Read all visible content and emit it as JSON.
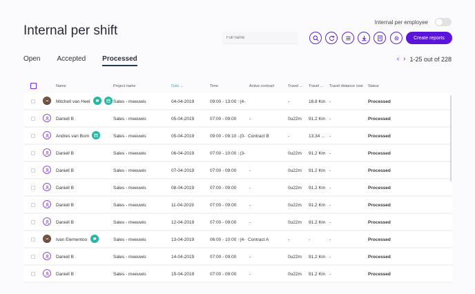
{
  "header": {
    "title": "Internal per shift",
    "toggle_label": "Internal per employee",
    "search_placeholder": "Full name",
    "create_button": "Create reports",
    "icons": [
      "search-icon",
      "refresh-icon",
      "list-icon",
      "download-icon",
      "document-icon",
      "gear-icon"
    ]
  },
  "tabs": [
    {
      "label": "Open",
      "active": false
    },
    {
      "label": "Accepted",
      "active": false
    },
    {
      "label": "Processed",
      "active": true
    }
  ],
  "pager": {
    "text": "1-25 out of 228",
    "prev": "‹",
    "next": "›"
  },
  "columns": {
    "name": "Name",
    "project": "Project name",
    "date": "Date",
    "date_sort": "⌄",
    "time": "Time",
    "contract": "Active contract",
    "travel1": "Travel ...",
    "travel2": "Travel ...",
    "travel_cost": "Travel distance cost",
    "status": "Status"
  },
  "rows": [
    {
      "name": "Mitchell van Heel",
      "project": "Sales - meeuwis",
      "date": "04-04-2019",
      "time": "09:00 - 13:00",
      "arrow": "↑",
      "arrow_dir": "up",
      "time_suffix": "(4-",
      "contract": "",
      "t1": "-",
      "t2": "18.8 Km",
      "cost": "-",
      "status": "Processed",
      "avatar": "photo",
      "badges": [
        "chat-icon",
        "calendar-icon"
      ]
    },
    {
      "name": "Daniell B",
      "project": "Sales - meeuwis",
      "date": "05-04-2019",
      "time": "07:00 - 09:00",
      "arrow": "",
      "arrow_dir": "",
      "time_suffix": "",
      "contract": "-",
      "t1": "0u22m",
      "t2": "91.2 Km",
      "cost": "-",
      "status": "Processed",
      "avatar": "default",
      "badges": []
    },
    {
      "name": "Andres van Born",
      "project": "Sales - meeuwis",
      "date": "05-04-2019",
      "time": "09:00 - 09:10",
      "arrow": "↓",
      "arrow_dir": "down",
      "time_suffix": "(0-",
      "contract": "Contract B",
      "t1": "-",
      "t2": "13.34 ...",
      "cost": "-",
      "status": "Processed",
      "avatar": "default",
      "badges": [
        "calendar-icon"
      ]
    },
    {
      "name": "Daniell B",
      "project": "Sales - meeuwis",
      "date": "06-04-2019",
      "time": "07:00 - 10:00",
      "arrow": "↓",
      "arrow_dir": "down",
      "time_suffix": "(3-",
      "contract": "",
      "t1": "0u22m",
      "t2": "91.2 Km",
      "cost": "-",
      "status": "Processed",
      "avatar": "default",
      "badges": []
    },
    {
      "name": "Daniell B",
      "project": "Sales - meeuwis",
      "date": "07-04-2019",
      "time": "07:00 - 09:00",
      "arrow": "",
      "arrow_dir": "",
      "time_suffix": "",
      "contract": "-",
      "t1": "0u22m",
      "t2": "91.2 Km",
      "cost": "-",
      "status": "Processed",
      "avatar": "default",
      "badges": []
    },
    {
      "name": "Daniell B",
      "project": "Sales - meeuwis",
      "date": "08-04-2019",
      "time": "07:00 - 09:00",
      "arrow": "",
      "arrow_dir": "",
      "time_suffix": "",
      "contract": "-",
      "t1": "0u22m",
      "t2": "91.2 Km",
      "cost": "-",
      "status": "Processed",
      "avatar": "default",
      "badges": []
    },
    {
      "name": "Daniell B",
      "project": "Sales - meeuwis",
      "date": "11-04-2019",
      "time": "07:00 - 09:00",
      "arrow": "",
      "arrow_dir": "",
      "time_suffix": "",
      "contract": "-",
      "t1": "0u22m",
      "t2": "91.2 Km",
      "cost": "-",
      "status": "Processed",
      "avatar": "default",
      "badges": []
    },
    {
      "name": "Daniell B",
      "project": "Sales - meeuwis",
      "date": "12-04-2019",
      "time": "07:00 - 09:00",
      "arrow": "",
      "arrow_dir": "",
      "time_suffix": "",
      "contract": "-",
      "t1": "0u22m",
      "t2": "91.2 Km",
      "cost": "-",
      "status": "Processed",
      "avatar": "default",
      "badges": []
    },
    {
      "name": "Ivan Elementoo",
      "project": "Sales - meeuwis",
      "date": "13-04-2019",
      "time": "06:00 - 10:00",
      "arrow": "↑",
      "arrow_dir": "up",
      "time_suffix": "(4-",
      "contract": "Contract A",
      "t1": "-",
      "t2": "-",
      "cost": "-",
      "status": "Processed",
      "avatar": "photo",
      "badges": [
        "chat-icon"
      ]
    },
    {
      "name": "Daniell B",
      "project": "Sales - meeuwis",
      "date": "14-04-2019",
      "time": "07:00 - 09:00",
      "arrow": "",
      "arrow_dir": "",
      "time_suffix": "",
      "contract": "-",
      "t1": "0u22m",
      "t2": "91.2 Km",
      "cost": "-",
      "status": "Processed",
      "avatar": "default",
      "badges": []
    },
    {
      "name": "Daniell B",
      "project": "Sales - meeuwis",
      "date": "15-04-2019",
      "time": "07:00 - 09:00",
      "arrow": "",
      "arrow_dir": "",
      "time_suffix": "",
      "contract": "-",
      "t1": "0u22m",
      "t2": "91.2 Km",
      "cost": "-",
      "status": "Processed",
      "avatar": "default",
      "badges": []
    }
  ]
}
